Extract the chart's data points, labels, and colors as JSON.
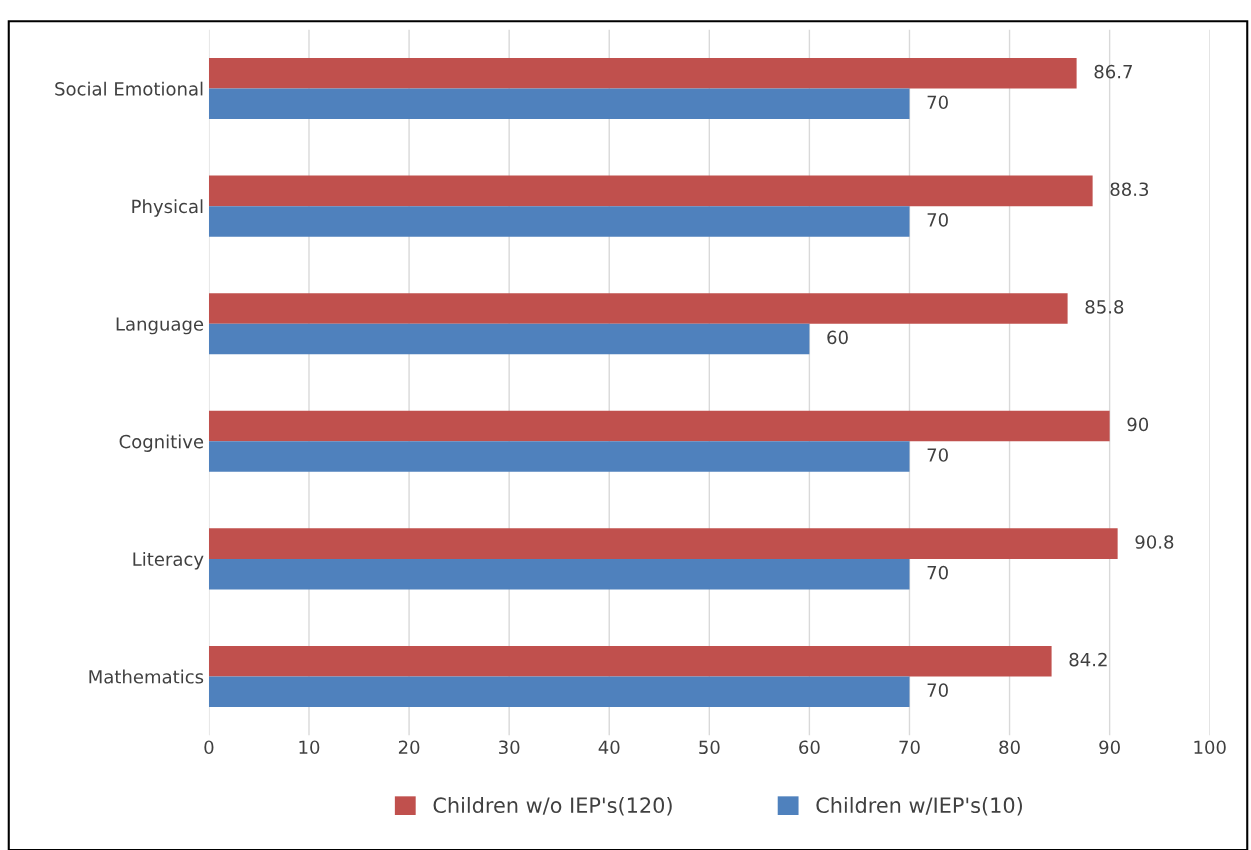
{
  "chart_data": {
    "type": "bar",
    "orientation": "horizontal",
    "categories": [
      "Social Emotional",
      "Physical",
      "Language",
      "Cognitive",
      "Literacy",
      "Mathematics"
    ],
    "series": [
      {
        "name": "Children w/o IEP's(120)",
        "color": "#c0504d",
        "values": [
          86.7,
          88.3,
          85.8,
          90,
          90.8,
          84.2
        ]
      },
      {
        "name": "Children w/IEP's(10)",
        "color": "#4f81bd",
        "values": [
          70,
          70,
          60,
          70,
          70,
          70
        ]
      }
    ],
    "xlim": [
      0,
      100
    ],
    "xticks": [
      0,
      10,
      20,
      30,
      40,
      50,
      60,
      70,
      80,
      90,
      100
    ],
    "grid": "x",
    "legend": "bottom",
    "data_labels": true
  }
}
